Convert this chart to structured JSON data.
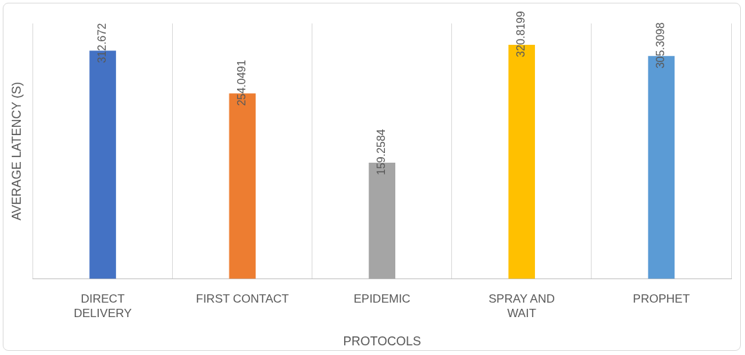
{
  "chart_data": {
    "type": "bar",
    "xlabel": "PROTOCOLS",
    "ylabel": "AVERAGE LATENCY (S)",
    "categories": [
      "DIRECT DELIVERY",
      "FIRST CONTACT",
      "EPIDEMIC",
      "SPRAY AND WAIT",
      "PROPHET"
    ],
    "values": [
      312.672,
      254.0491,
      159.2584,
      320.8199,
      305.3098
    ],
    "colors": [
      "#4472c4",
      "#ed7d31",
      "#a5a5a5",
      "#ffc000",
      "#5b9bd5"
    ],
    "ylim": [
      0,
      350
    ],
    "grid": "x",
    "legend": false,
    "data_labels": true
  }
}
